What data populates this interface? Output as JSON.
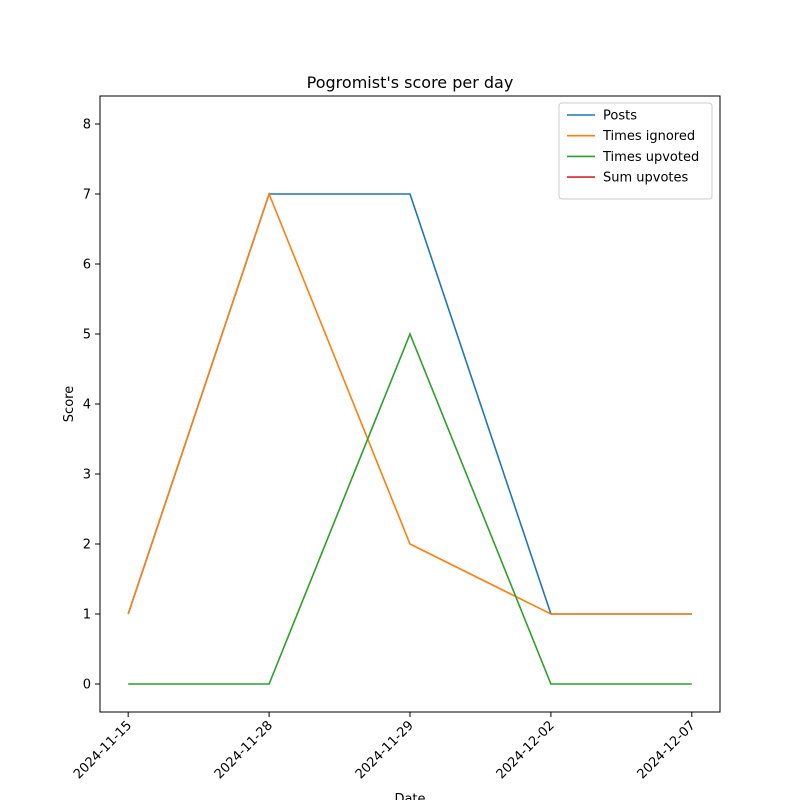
{
  "chart_data": {
    "type": "line",
    "title": "Pogromist's score per day",
    "xlabel": "Date",
    "ylabel": "Score",
    "categories": [
      "2024-11-15",
      "2024-11-28",
      "2024-11-29",
      "2024-12-02",
      "2024-12-07"
    ],
    "series": [
      {
        "name": "Posts",
        "color": "#1f77b4",
        "values": [
          1,
          7,
          7,
          1,
          1
        ]
      },
      {
        "name": "Times ignored",
        "color": "#ff7f0e",
        "values": [
          1,
          7,
          2,
          1,
          1
        ]
      },
      {
        "name": "Times upvoted",
        "color": "#2ca02c",
        "values": [
          0,
          0,
          5,
          0,
          0
        ]
      },
      {
        "name": "Sum upvotes",
        "color": "#d62728",
        "values": [
          null,
          null,
          null,
          null,
          null
        ]
      }
    ],
    "ylim": [
      -0.4,
      8.4
    ],
    "yticks": [
      0,
      1,
      2,
      3,
      4,
      5,
      6,
      7,
      8
    ],
    "legend": "upper right",
    "grid": false
  }
}
